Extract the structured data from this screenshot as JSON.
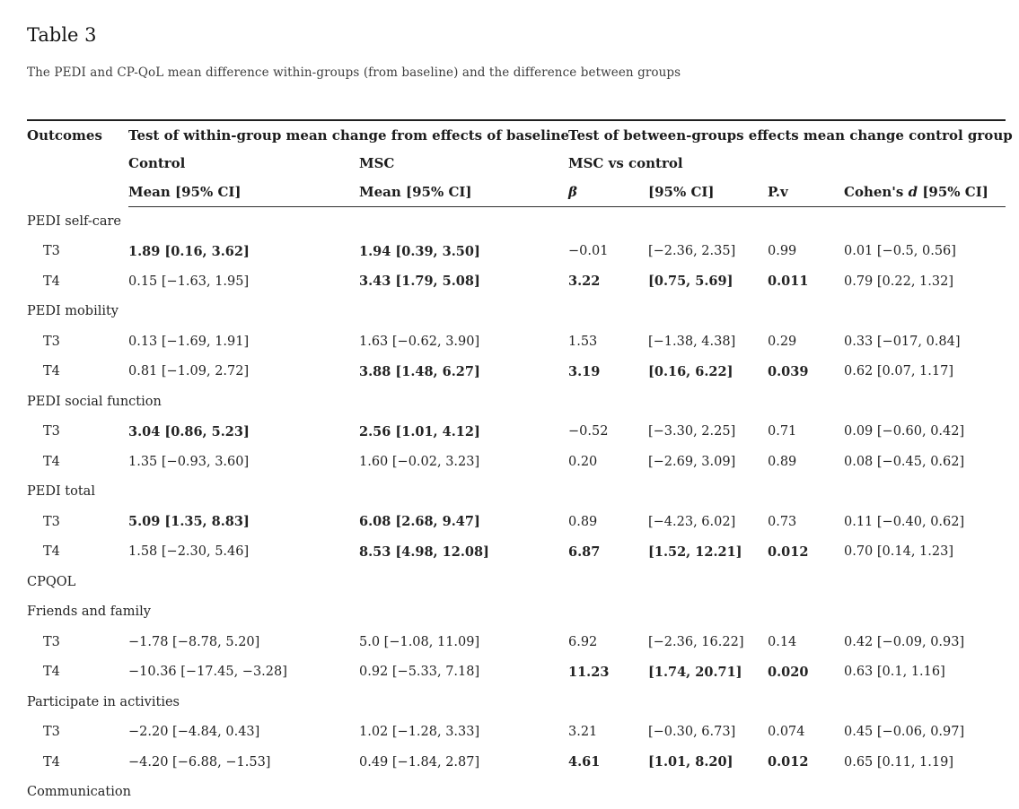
{
  "page": {
    "title": "Table 3",
    "subtitle": "The PEDI and CP-QoL mean difference within-groups (from baseline) and the difference between groups"
  },
  "table": {
    "header": {
      "outcomes": "Outcomes",
      "within_group": "Test of within-group mean change from effects of baseline",
      "between_groups": "Test of between-groups effects mean change control group",
      "control": "Control",
      "msc": "MSC",
      "msc_vs_control": "MSC vs control",
      "col_mean_control": "Mean [95% CI]",
      "col_mean_msc": "Mean [95% CI]",
      "col_beta": "β",
      "col_ci": "[95% CI]",
      "col_pv": "P.v",
      "cohens_prefix": "Cohen's",
      "cohens_d": "d",
      "cohens_suffix": "[95% CI]"
    },
    "rows": [
      {
        "kind": "group",
        "label": "PEDI self-care"
      },
      {
        "kind": "data",
        "label": "T3",
        "cells": [
          {
            "t": "1.89 [0.16, 3.62]",
            "b": true
          },
          {
            "t": "1.94 [0.39, 3.50]",
            "b": true
          },
          {
            "t": "−0.01",
            "b": false
          },
          {
            "t": "[−2.36, 2.35]",
            "b": false
          },
          {
            "t": "0.99",
            "b": false
          },
          {
            "t": "0.01 [−0.5, 0.56]",
            "b": false
          }
        ]
      },
      {
        "kind": "data",
        "label": "T4",
        "cells": [
          {
            "t": "0.15 [−1.63, 1.95]",
            "b": false
          },
          {
            "t": "3.43 [1.79, 5.08]",
            "b": true
          },
          {
            "t": "3.22",
            "b": true
          },
          {
            "t": "[0.75, 5.69]",
            "b": true
          },
          {
            "t": "0.011",
            "b": true
          },
          {
            "t": "0.79 [0.22, 1.32]",
            "b": false
          }
        ]
      },
      {
        "kind": "group",
        "label": "PEDI mobility"
      },
      {
        "kind": "data",
        "label": "T3",
        "cells": [
          {
            "t": "0.13 [−1.69, 1.91]",
            "b": false
          },
          {
            "t": "1.63 [−0.62, 3.90]",
            "b": false
          },
          {
            "t": "1.53",
            "b": false
          },
          {
            "t": "[−1.38, 4.38]",
            "b": false
          },
          {
            "t": "0.29",
            "b": false
          },
          {
            "t": "0.33 [−017, 0.84]",
            "b": false
          }
        ]
      },
      {
        "kind": "data",
        "label": "T4",
        "cells": [
          {
            "t": "0.81 [−1.09, 2.72]",
            "b": false
          },
          {
            "t": "3.88 [1.48, 6.27]",
            "b": true
          },
          {
            "t": "3.19",
            "b": true
          },
          {
            "t": "[0.16, 6.22]",
            "b": true
          },
          {
            "t": "0.039",
            "b": true
          },
          {
            "t": "0.62 [0.07, 1.17]",
            "b": false
          }
        ]
      },
      {
        "kind": "group",
        "label": "PEDI social function"
      },
      {
        "kind": "data",
        "label": "T3",
        "cells": [
          {
            "t": "3.04 [0.86, 5.23]",
            "b": true
          },
          {
            "t": "2.56 [1.01, 4.12]",
            "b": true
          },
          {
            "t": "−0.52",
            "b": false
          },
          {
            "t": "[−3.30, 2.25]",
            "b": false
          },
          {
            "t": "0.71",
            "b": false
          },
          {
            "t": "0.09 [−0.60, 0.42]",
            "b": false
          }
        ]
      },
      {
        "kind": "data",
        "label": "T4",
        "cells": [
          {
            "t": "1.35 [−0.93, 3.60]",
            "b": false
          },
          {
            "t": "1.60 [−0.02, 3.23]",
            "b": false
          },
          {
            "t": "0.20",
            "b": false
          },
          {
            "t": "[−2.69, 3.09]",
            "b": false
          },
          {
            "t": "0.89",
            "b": false
          },
          {
            "t": "0.08 [−0.45, 0.62]",
            "b": false
          }
        ]
      },
      {
        "kind": "group",
        "label": "PEDI total"
      },
      {
        "kind": "data",
        "label": "T3",
        "cells": [
          {
            "t": "5.09 [1.35, 8.83]",
            "b": true
          },
          {
            "t": "6.08 [2.68, 9.47]",
            "b": true
          },
          {
            "t": "0.89",
            "b": false
          },
          {
            "t": "[−4.23, 6.02]",
            "b": false
          },
          {
            "t": "0.73",
            "b": false
          },
          {
            "t": "0.11 [−0.40, 0.62]",
            "b": false
          }
        ]
      },
      {
        "kind": "data",
        "label": "T4",
        "cells": [
          {
            "t": "1.58 [−2.30, 5.46]",
            "b": false
          },
          {
            "t": "8.53 [4.98, 12.08]",
            "b": true
          },
          {
            "t": "6.87",
            "b": true
          },
          {
            "t": "[1.52, 12.21]",
            "b": true
          },
          {
            "t": "0.012",
            "b": true
          },
          {
            "t": "0.70 [0.14, 1.23]",
            "b": false
          }
        ]
      },
      {
        "kind": "group",
        "label": "CPQOL"
      },
      {
        "kind": "group",
        "label": "Friends and family"
      },
      {
        "kind": "data",
        "label": "T3",
        "cells": [
          {
            "t": "−1.78 [−8.78, 5.20]",
            "b": false
          },
          {
            "t": "5.0 [−1.08, 11.09]",
            "b": false
          },
          {
            "t": "6.92",
            "b": false
          },
          {
            "t": "[−2.36, 16.22]",
            "b": false
          },
          {
            "t": "0.14",
            "b": false
          },
          {
            "t": "0.42 [−0.09, 0.93]",
            "b": false
          }
        ]
      },
      {
        "kind": "data",
        "label": "T4",
        "cells": [
          {
            "t": "−10.36 [−17.45, −3.28]",
            "b": false
          },
          {
            "t": "0.92 [−5.33, 7.18]",
            "b": false
          },
          {
            "t": "11.23",
            "b": true
          },
          {
            "t": "[1.74, 20.71]",
            "b": true
          },
          {
            "t": "0.020",
            "b": true
          },
          {
            "t": "0.63 [0.1, 1.16]",
            "b": false
          }
        ]
      },
      {
        "kind": "group",
        "label": "Participate in activities"
      },
      {
        "kind": "data",
        "label": "T3",
        "cells": [
          {
            "t": "−2.20 [−4.84, 0.43]",
            "b": false
          },
          {
            "t": "1.02 [−1.28, 3.33]",
            "b": false
          },
          {
            "t": "3.21",
            "b": false
          },
          {
            "t": "[−0.30, 6.73]",
            "b": false
          },
          {
            "t": "0.074",
            "b": false
          },
          {
            "t": "0.45 [−0.06, 0.97]",
            "b": false
          }
        ]
      },
      {
        "kind": "data",
        "label": "T4",
        "cells": [
          {
            "t": "−4.20 [−6.88, −1.53]",
            "b": false
          },
          {
            "t": "0.49 [−1.84, 2.87]",
            "b": false
          },
          {
            "t": "4.61",
            "b": true
          },
          {
            "t": "[1.01, 8.20]",
            "b": true
          },
          {
            "t": "0.012",
            "b": true
          },
          {
            "t": "0.65 [0.11, 1.19]",
            "b": false
          }
        ]
      },
      {
        "kind": "group",
        "label": "Communication"
      }
    ]
  }
}
